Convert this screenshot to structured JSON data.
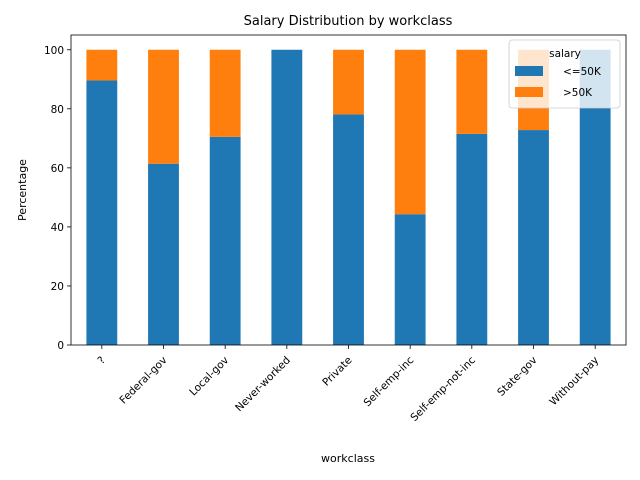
{
  "chart_data": {
    "type": "bar",
    "stacked": true,
    "title": "Salary Distribution by workclass",
    "xlabel": "workclass",
    "ylabel": "Percentage",
    "ylim": [
      0,
      105
    ],
    "yticks": [
      0,
      20,
      40,
      60,
      80,
      100
    ],
    "grid": false,
    "categories": [
      "?",
      "Federal-gov",
      "Local-gov",
      "Never-worked",
      "Private",
      "Self-emp-inc",
      "Self-emp-not-inc",
      "State-gov",
      "Without-pay"
    ],
    "series": [
      {
        "name": "<=50K",
        "color": "#1f77b4",
        "values": [
          89.6,
          61.4,
          70.5,
          100,
          78.1,
          44.3,
          71.5,
          72.8,
          100
        ]
      },
      {
        "name": ">50K",
        "color": "#ff7f0e",
        "values": [
          10.4,
          38.6,
          29.5,
          0,
          21.9,
          55.7,
          28.5,
          27.2,
          0
        ]
      }
    ],
    "legend": {
      "title": "salary",
      "position": "top-right"
    }
  }
}
